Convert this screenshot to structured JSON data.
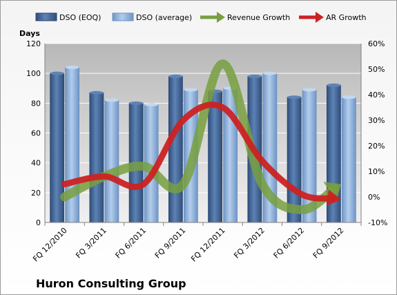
{
  "chart_data": {
    "type": "bar",
    "caption": "Huron Consulting Group",
    "ylabel": "Days",
    "ylim": [
      0,
      120
    ],
    "y_ticks": [
      "0",
      "20",
      "40",
      "60",
      "80",
      "100",
      "120"
    ],
    "y2lim": [
      -10,
      60
    ],
    "y2_ticks": [
      "-10%",
      "0%",
      "10%",
      "20%",
      "30%",
      "40%",
      "50%",
      "60%"
    ],
    "categories": [
      "FQ 12/2010",
      "FQ 3/2011",
      "FQ 6/2011",
      "FQ 9/2011",
      "FQ 12/2011",
      "FQ 3/2012",
      "FQ 6/2012",
      "FQ 9/2012"
    ],
    "grid": true,
    "legend_position": "top",
    "series": [
      {
        "name": "DSO (EOQ)",
        "type": "bar",
        "axis": "left",
        "color": "#3f6597",
        "values": [
          100,
          87,
          80,
          98,
          88,
          98,
          84,
          92
        ]
      },
      {
        "name": "DSO (average)",
        "type": "bar",
        "axis": "left",
        "color": "#8db0dc",
        "values": [
          104,
          82,
          79,
          89,
          90,
          100,
          89,
          84
        ]
      },
      {
        "name": "Revenue Growth",
        "type": "line",
        "axis": "right",
        "color": "#78a040",
        "values": [
          0,
          8,
          12,
          5,
          52,
          5,
          -5,
          5
        ]
      },
      {
        "name": "AR Growth",
        "type": "line",
        "axis": "right",
        "color": "#cc2222",
        "values": [
          5,
          8,
          5,
          30,
          35,
          14,
          1,
          -1
        ]
      }
    ]
  }
}
